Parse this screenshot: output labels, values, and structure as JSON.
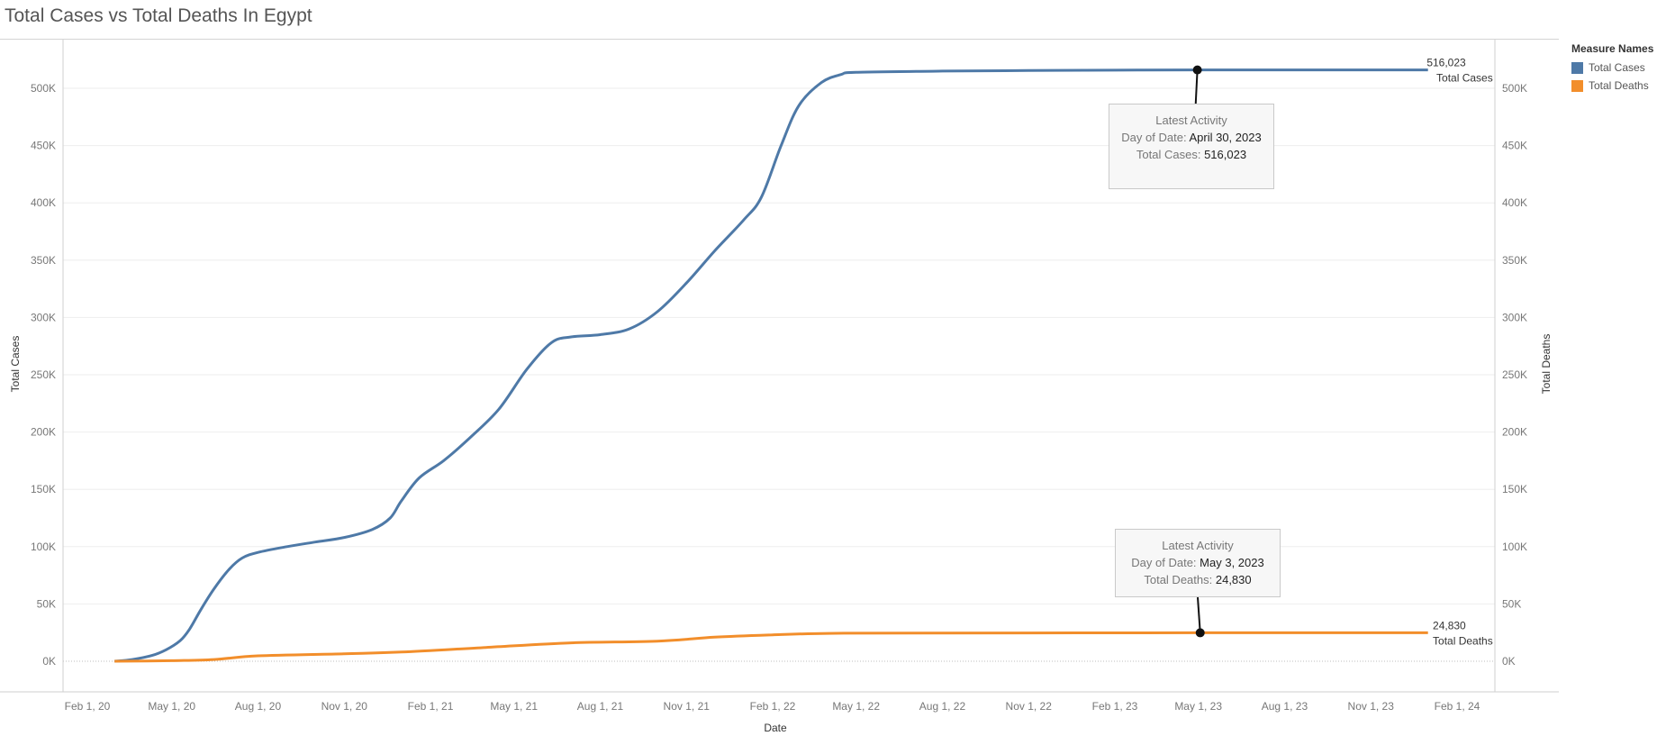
{
  "chart_data": {
    "type": "line",
    "title": "Total Cases vs Total Deaths In Egypt",
    "xlabel": "Date",
    "ylabel_left": "Total Cases",
    "ylabel_right": "Total Deaths",
    "x_ticks": [
      "Feb 1, 20",
      "May 1, 20",
      "Aug 1, 20",
      "Nov 1, 20",
      "Feb 1, 21",
      "May 1, 21",
      "Aug 1, 21",
      "Nov 1, 21",
      "Feb 1, 22",
      "May 1, 22",
      "Aug 1, 22",
      "Nov 1, 22",
      "Feb 1, 23",
      "May 1, 23",
      "Aug 1, 23",
      "Nov 1, 23",
      "Feb 1, 24"
    ],
    "y_ticks": [
      "0K",
      "50K",
      "100K",
      "150K",
      "200K",
      "250K",
      "300K",
      "350K",
      "400K",
      "450K",
      "500K"
    ],
    "ylim": [
      0,
      540000
    ],
    "grid": true,
    "legend": {
      "title": "Measure Names",
      "placement": "right",
      "items": [
        {
          "name": "Total Cases",
          "color": "#4e79a7"
        },
        {
          "name": "Total Deaths",
          "color": "#f28e2b"
        }
      ]
    },
    "series": [
      {
        "name": "Total Cases",
        "color": "#4e79a7",
        "end_value": "516,023",
        "end_label": "Total Cases",
        "points": [
          [
            "2020-03-01",
            0
          ],
          [
            "2020-03-20",
            1500
          ],
          [
            "2020-04-10",
            5000
          ],
          [
            "2020-04-25",
            10000
          ],
          [
            "2020-05-10",
            18000
          ],
          [
            "2020-05-20",
            28000
          ],
          [
            "2020-06-01",
            45000
          ],
          [
            "2020-06-15",
            63000
          ],
          [
            "2020-07-01",
            80000
          ],
          [
            "2020-07-15",
            90000
          ],
          [
            "2020-08-01",
            95000
          ],
          [
            "2020-09-01",
            100000
          ],
          [
            "2020-10-01",
            104000
          ],
          [
            "2020-11-01",
            108000
          ],
          [
            "2020-12-01",
            115000
          ],
          [
            "2020-12-20",
            125000
          ],
          [
            "2021-01-01",
            140000
          ],
          [
            "2021-01-20",
            160000
          ],
          [
            "2021-02-15",
            175000
          ],
          [
            "2021-03-15",
            195000
          ],
          [
            "2021-04-15",
            220000
          ],
          [
            "2021-05-15",
            255000
          ],
          [
            "2021-06-10",
            278000
          ],
          [
            "2021-07-01",
            283000
          ],
          [
            "2021-08-01",
            285000
          ],
          [
            "2021-09-01",
            290000
          ],
          [
            "2021-10-01",
            305000
          ],
          [
            "2021-11-01",
            330000
          ],
          [
            "2021-12-01",
            358000
          ],
          [
            "2022-01-01",
            385000
          ],
          [
            "2022-01-20",
            405000
          ],
          [
            "2022-02-10",
            450000
          ],
          [
            "2022-03-01",
            485000
          ],
          [
            "2022-03-25",
            505000
          ],
          [
            "2022-04-15",
            512000
          ],
          [
            "2022-05-01",
            514000
          ],
          [
            "2022-08-01",
            515000
          ],
          [
            "2022-11-01",
            515500
          ],
          [
            "2023-02-01",
            515800
          ],
          [
            "2023-04-30",
            516023
          ],
          [
            "2024-01-01",
            516023
          ]
        ]
      },
      {
        "name": "Total Deaths",
        "color": "#f28e2b",
        "end_value": "24,830",
        "end_label": "Total Deaths",
        "points": [
          [
            "2020-03-01",
            0
          ],
          [
            "2020-05-01",
            500
          ],
          [
            "2020-06-15",
            1500
          ],
          [
            "2020-08-01",
            4700
          ],
          [
            "2020-11-01",
            6500
          ],
          [
            "2021-01-01",
            8000
          ],
          [
            "2021-04-01",
            12000
          ],
          [
            "2021-07-01",
            16000
          ],
          [
            "2021-10-01",
            17500
          ],
          [
            "2021-12-01",
            21000
          ],
          [
            "2022-02-01",
            23000
          ],
          [
            "2022-04-01",
            24300
          ],
          [
            "2022-07-01",
            24600
          ],
          [
            "2023-05-03",
            24830
          ],
          [
            "2024-01-01",
            24830
          ]
        ]
      }
    ],
    "annotations": [
      {
        "series": "Total Cases",
        "date": "2023-04-30",
        "value": 516023,
        "heading": "Latest Activity",
        "date_label": "Day of Date:",
        "date_text": "April 30, 2023",
        "value_label": "Total Cases:",
        "value_text": "516,023"
      },
      {
        "series": "Total Deaths",
        "date": "2023-05-03",
        "value": 24830,
        "heading": "Latest Activity",
        "date_label": "Day of Date:",
        "date_text": "May 3, 2023",
        "value_label": "Total Deaths:",
        "value_text": "24,830"
      }
    ]
  }
}
